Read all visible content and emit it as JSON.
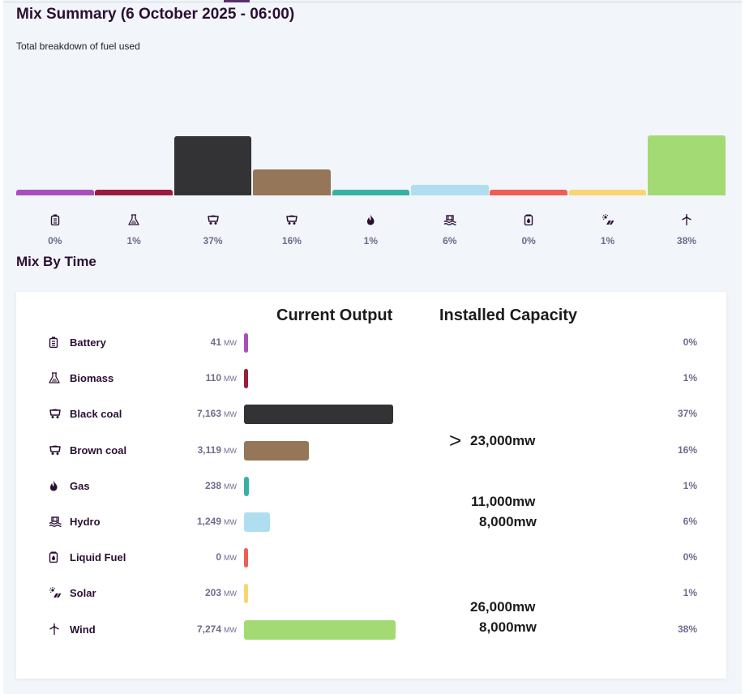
{
  "header": {
    "title": "Mix Summary (6 October 2025 - 06:00)",
    "subtitle": "Total breakdown of fuel used"
  },
  "section": {
    "title": "Mix By Time"
  },
  "table": {
    "current_output_label": "Current Output",
    "installed_capacity_label": "Installed Capacity",
    "mw_unit": "MW"
  },
  "capacity_annotations": {
    "arrow": ">",
    "coal": "23,000mw",
    "gas": "11,000mw",
    "hydro": "8,000mw",
    "solar": "26,000mw",
    "wind": "8,000mw"
  },
  "chart_data": {
    "type": "bar",
    "title": "Mix Summary (6 October 2025 - 06:00)",
    "subtitle": "Total breakdown of fuel used",
    "unit": "MW",
    "categories": [
      "Battery",
      "Biomass",
      "Black coal",
      "Brown coal",
      "Gas",
      "Hydro",
      "Liquid Fuel",
      "Solar",
      "Wind"
    ],
    "values": [
      41,
      110,
      7163,
      3119,
      238,
      1249,
      0,
      203,
      7274
    ],
    "values_display": [
      "41",
      "110",
      "7,163",
      "3,119",
      "238",
      "1,249",
      "0",
      "203",
      "7,274"
    ],
    "percentages": [
      "0%",
      "1%",
      "37%",
      "16%",
      "1%",
      "6%",
      "0%",
      "1%",
      "38%"
    ],
    "icons": [
      "battery-icon",
      "biomass-icon",
      "coal-icon",
      "coal-icon",
      "gas-icon",
      "hydro-icon",
      "liquid-fuel-icon",
      "solar-icon",
      "wind-icon"
    ],
    "colors": [
      "#a94fbd",
      "#9b1d3c",
      "#333336",
      "#957659",
      "#37b1a4",
      "#afdfee",
      "#ee5e56",
      "#fad573",
      "#a4da73"
    ]
  }
}
